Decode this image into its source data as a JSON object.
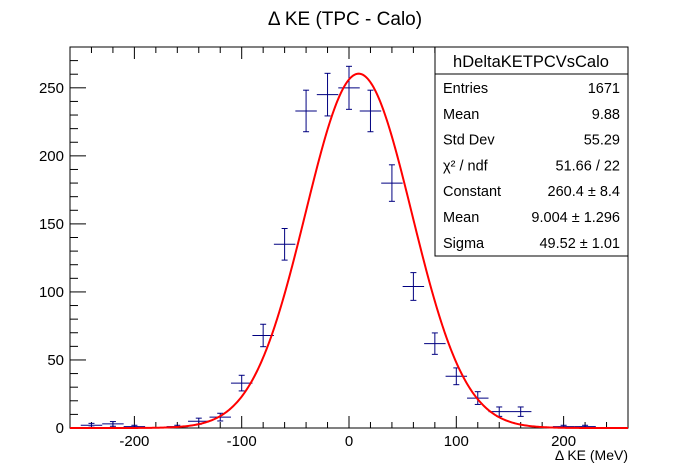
{
  "chart_data": {
    "type": "histogram",
    "title": "Δ KE (TPC - Calo)",
    "xlabel": "Δ KE (MeV)",
    "ylabel": "",
    "xlim": [
      -260,
      260
    ],
    "ylim": [
      0,
      280
    ],
    "x_ticks": [
      -200,
      -100,
      0,
      100,
      200
    ],
    "y_ticks": [
      0,
      50,
      100,
      150,
      200,
      250
    ],
    "grid": false,
    "bin_width": 20,
    "series": [
      {
        "style": "data-points-with-errors",
        "color": "#000080",
        "x": [
          -240,
          -220,
          -200,
          -180,
          -160,
          -140,
          -120,
          -100,
          -80,
          -60,
          -40,
          -20,
          0,
          20,
          40,
          60,
          80,
          100,
          120,
          140,
          160,
          180,
          200,
          220,
          240
        ],
        "y": [
          2,
          3,
          1,
          0,
          1,
          5,
          8,
          33,
          68,
          135,
          233,
          245,
          250,
          233,
          180,
          104,
          62,
          38,
          22,
          12,
          12,
          0,
          1,
          1,
          0
        ]
      },
      {
        "style": "gaussian-fit",
        "color": "#ff0000",
        "constant": 260.4,
        "mean": 9.004,
        "sigma": 49.52
      }
    ],
    "stats_box": {
      "position": "top-right",
      "title": "hDeltaKETPCVsCalo",
      "rows": [
        {
          "label": "Entries",
          "value": "1671"
        },
        {
          "label": "Mean",
          "value": "9.88"
        },
        {
          "label": "Std Dev",
          "value": "55.29"
        },
        {
          "label": "χ² / ndf",
          "value": "51.66 / 22"
        },
        {
          "label": "Constant",
          "value": "260.4 ± 8.4"
        },
        {
          "label": "Mean",
          "value": "9.004 ± 1.296"
        },
        {
          "label": "Sigma",
          "value": "49.52 ± 1.01"
        }
      ]
    }
  }
}
